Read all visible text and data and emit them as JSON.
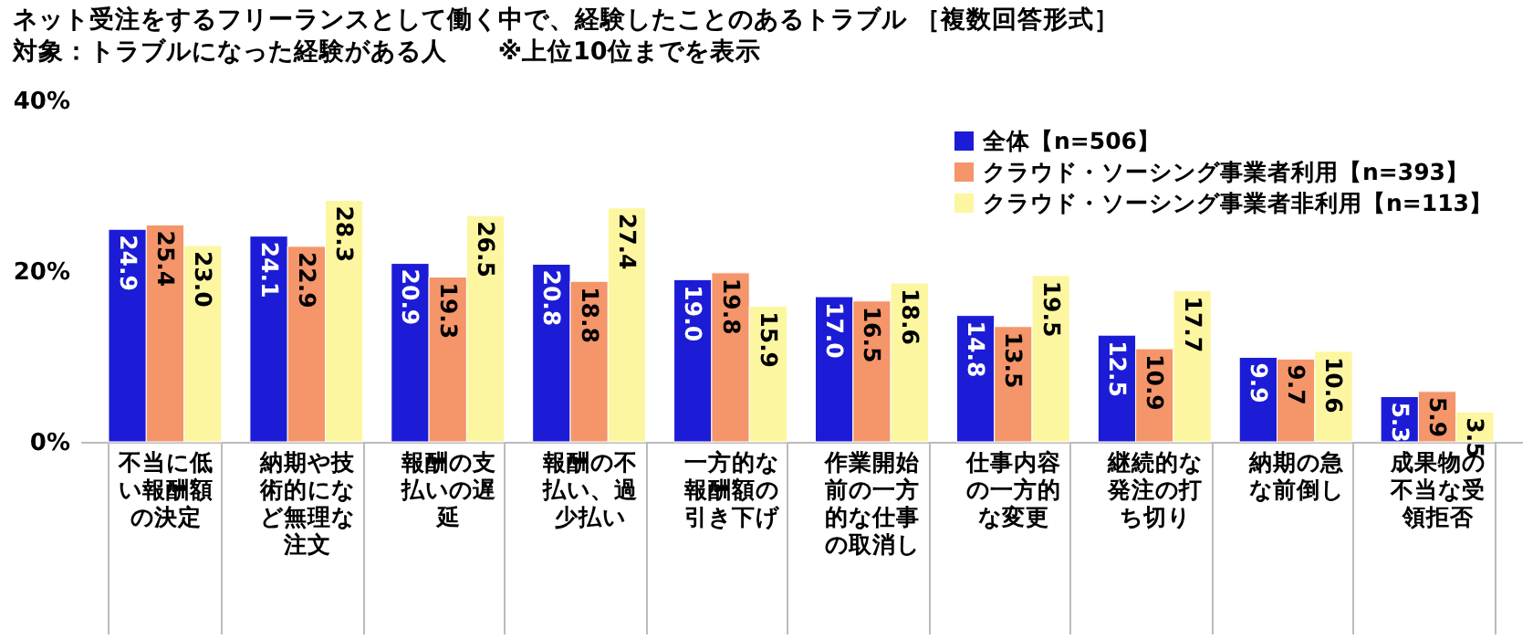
{
  "chart_data": {
    "type": "bar",
    "title": "ネット受注をするフリーランスとして働く中で、経験したことのあるトラブル ［複数回答形式］",
    "subtitle": "対象：トラブルになった経験がある人　　※上位10位までを表示",
    "categories": [
      "不当に低い報酬額の決定",
      "納期や技術的になど無理な注文",
      "報酬の支払いの遅延",
      "報酬の不払い、過少払い",
      "一方的な報酬額の引き下げ",
      "作業開始前の一方的な仕事の取消し",
      "仕事内容の一方的な変更",
      "継続的な発注の打ち切り",
      "納期の急な前倒し",
      "成果物の不当な受領拒否"
    ],
    "series": [
      {
        "name": "全体【n=506】",
        "color": "#1c1cd6",
        "values": [
          24.9,
          24.1,
          20.9,
          20.8,
          19.0,
          17.0,
          14.8,
          12.5,
          9.9,
          5.3
        ],
        "value_labels": [
          "24.9",
          "24.1",
          "20.9",
          "20.8",
          "19.0",
          "17.0",
          "14.8",
          "12.5",
          "9.9",
          "5.3"
        ]
      },
      {
        "name": "クラウド・ソーシング事業者利用【n=393】",
        "color": "#f4956a",
        "values": [
          25.4,
          22.9,
          19.3,
          18.8,
          19.8,
          16.5,
          13.5,
          10.9,
          9.7,
          5.9
        ],
        "value_labels": [
          "25.4",
          "22.9",
          "19.3",
          "18.8",
          "19.8",
          "16.5",
          "13.5",
          "10.9",
          "9.7",
          "5.9"
        ]
      },
      {
        "name": "クラウド・ソーシング事業者非利用【n=113】",
        "color": "#fdf6a0",
        "values": [
          23.0,
          28.3,
          26.5,
          27.4,
          15.9,
          18.6,
          19.5,
          17.7,
          10.6,
          3.5
        ],
        "value_labels": [
          "23.0",
          "28.3",
          "26.5",
          "27.4",
          "15.9",
          "18.6",
          "19.5",
          "17.7",
          "10.6",
          "3.5"
        ]
      }
    ],
    "ylim": [
      0,
      40
    ],
    "yticks": [
      {
        "value": 0,
        "label": "0%"
      },
      {
        "value": 20,
        "label": "20%"
      },
      {
        "value": 40,
        "label": "40%"
      }
    ],
    "legend": "top right"
  }
}
